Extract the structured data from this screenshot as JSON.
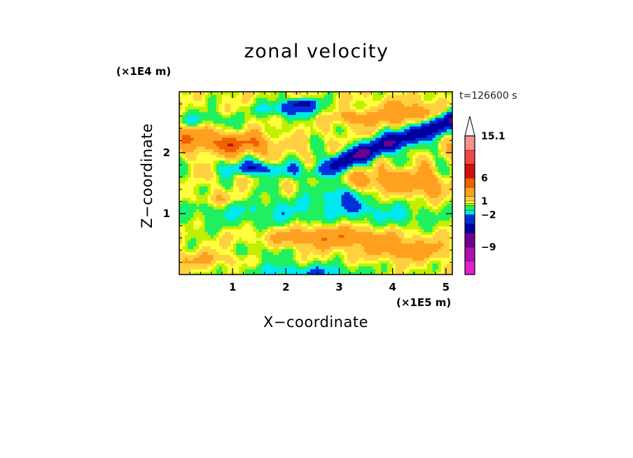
{
  "chart_data": {
    "type": "heatmap",
    "title": "zonal velocity",
    "xlabel": "X−coordinate",
    "ylabel": "Z−coordinate",
    "x_unit_label": "(×1E5 m)",
    "y_unit_label": "(×1E4 m)",
    "timestamp": "t=126600 s",
    "xlim": [
      0,
      5.12
    ],
    "ylim": [
      0,
      3.0
    ],
    "x_ticks": [
      "1",
      "2",
      "3",
      "4",
      "5"
    ],
    "y_ticks": [
      "1",
      "2"
    ],
    "colorbar": {
      "labels": [
        {
          "text": "15.1",
          "value": 15.1
        },
        {
          "text": "6",
          "value": 6
        },
        {
          "text": "1",
          "value": 1
        },
        {
          "text": "−2",
          "value": -2
        },
        {
          "text": "−9",
          "value": -9
        }
      ],
      "levels": [
        {
          "color": "#e020c8",
          "min": -15,
          "max": -12
        },
        {
          "color": "#b010b0",
          "min": -12,
          "max": -9
        },
        {
          "color": "#700090",
          "min": -9,
          "max": -6
        },
        {
          "color": "#0000a0",
          "min": -6,
          "max": -4
        },
        {
          "color": "#0030d8",
          "min": -4,
          "max": -2
        },
        {
          "color": "#00e8f0",
          "min": -2,
          "max": -1
        },
        {
          "color": "#20f060",
          "min": -1,
          "max": 0
        },
        {
          "color": "#c0f000",
          "min": 0,
          "max": 0.5
        },
        {
          "color": "#ffff40",
          "min": 0.5,
          "max": 1
        },
        {
          "color": "#ffd040",
          "min": 1,
          "max": 2
        },
        {
          "color": "#ffa020",
          "min": 2,
          "max": 4
        },
        {
          "color": "#f06000",
          "min": 4,
          "max": 6
        },
        {
          "color": "#d01010",
          "min": 6,
          "max": 9
        },
        {
          "color": "#f04848",
          "min": 9,
          "max": 12
        },
        {
          "color": "#f89090",
          "min": 12,
          "max": 15.1
        },
        {
          "color": "#fcc8c8",
          "min": 15.1,
          "max": 18
        }
      ]
    }
  }
}
